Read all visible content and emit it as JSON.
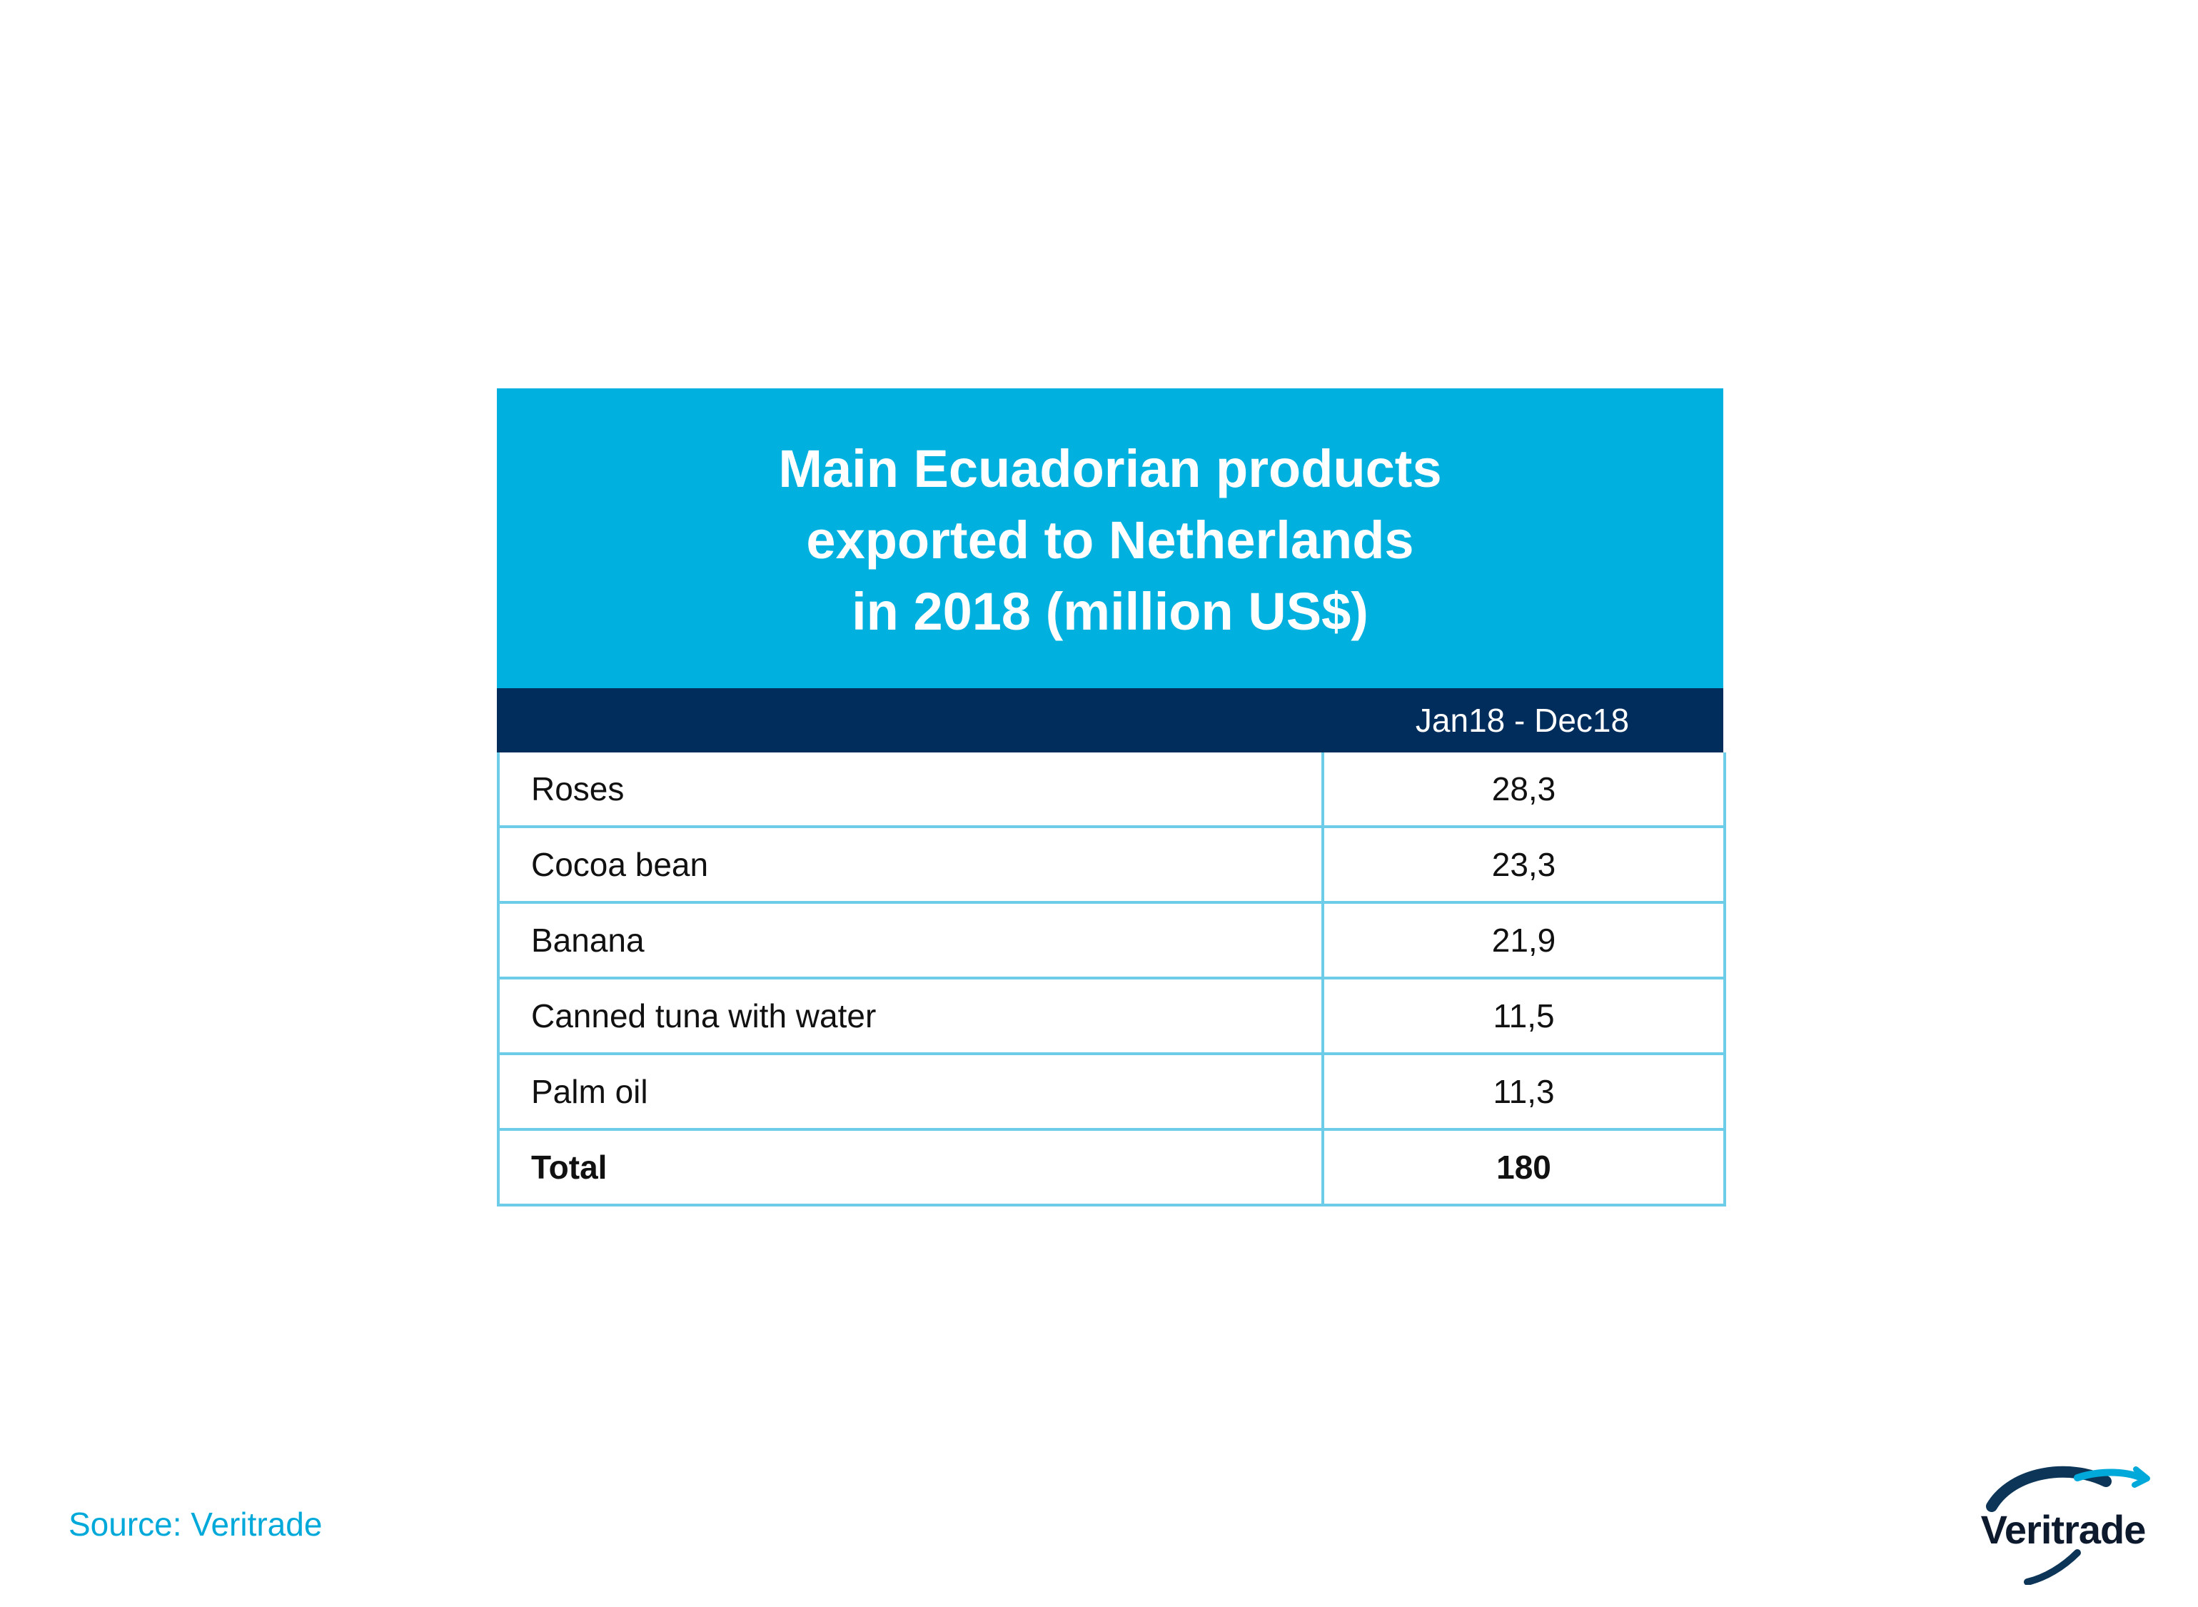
{
  "chart_data": {
    "type": "table",
    "title": "Main Ecuadorian products exported to Netherlands in 2018 (million US$)",
    "title_lines": [
      "Main Ecuadorian products",
      "exported to Netherlands",
      "in 2018 (million US$)"
    ],
    "columns": [
      "",
      "Jan18 - Dec18"
    ],
    "rows": [
      {
        "label": "Roses",
        "value": "28,3"
      },
      {
        "label": "Cocoa bean",
        "value": "23,3"
      },
      {
        "label": "Banana",
        "value": "21,9"
      },
      {
        "label": "Canned tuna with water",
        "value": "11,5"
      },
      {
        "label": "Palm oil",
        "value": "11,3"
      }
    ],
    "total": {
      "label": "Total",
      "value": "180"
    }
  },
  "source": "Source: Veritrade",
  "logo": {
    "text": "Veritrade",
    "icon": "veritrade-swoosh-logo"
  },
  "colors": {
    "title_band": "#00b0df",
    "header_band": "#012d5c",
    "grid_lines": "#6dcde8",
    "source_text": "#00a9d9"
  }
}
